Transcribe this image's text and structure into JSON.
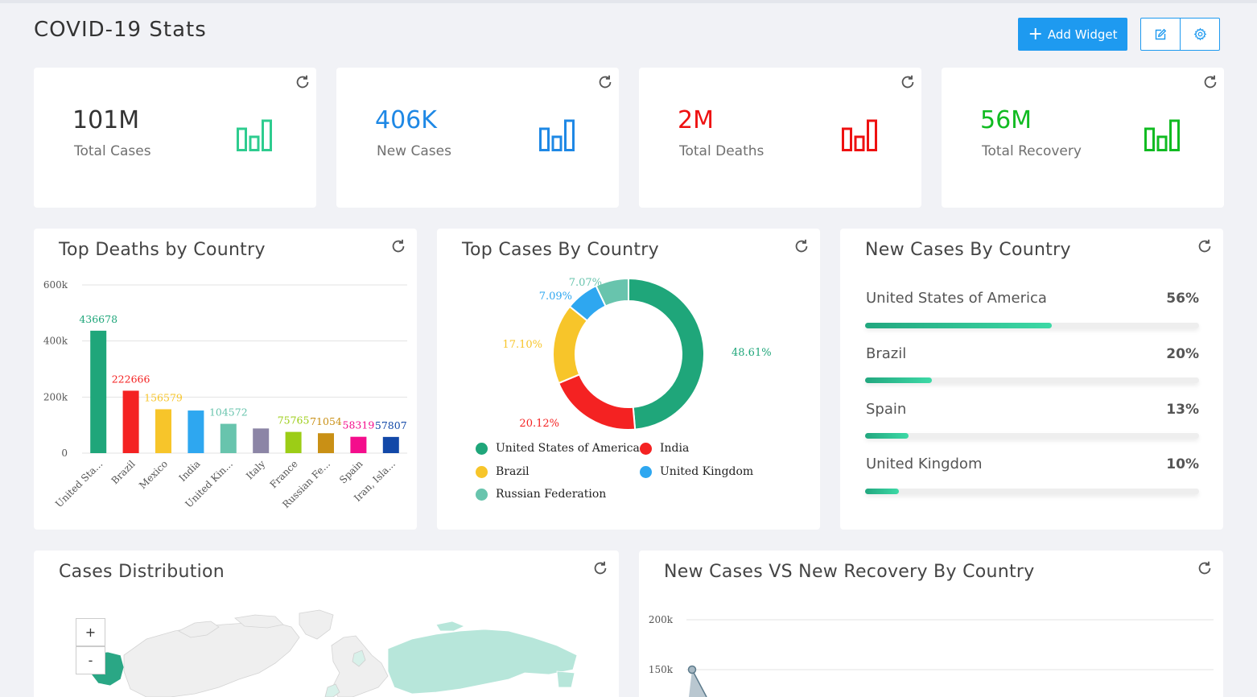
{
  "header": {
    "title": "COVID-19 Stats",
    "add_widget_label": "Add Widget",
    "edit_icon": "edit-icon",
    "settings_icon": "gear-icon",
    "accent": "#1e9af0"
  },
  "stats": [
    {
      "value": "101M",
      "label": "Total Cases",
      "color": "#333333",
      "icon_color": "#2ecc8f"
    },
    {
      "value": "406K",
      "label": "New Cases",
      "color": "#1e88e5",
      "icon_color": "#1e88e5"
    },
    {
      "value": "2M",
      "label": "Total Deaths",
      "color": "#ee1111",
      "icon_color": "#ee1111"
    },
    {
      "value": "56M",
      "label": "Total Recovery",
      "color": "#11bb22",
      "icon_color": "#11bb22"
    }
  ],
  "top_deaths": {
    "title": "Top Deaths by Country"
  },
  "top_cases": {
    "title": "Top Cases By Country"
  },
  "new_cases": {
    "title": "New Cases By Country",
    "rows": [
      {
        "country": "United States of America",
        "pct_label": "56%",
        "pct": 56
      },
      {
        "country": "Brazil",
        "pct_label": "20%",
        "pct": 20
      },
      {
        "country": "Spain",
        "pct_label": "13%",
        "pct": 13
      },
      {
        "country": "United Kingdom",
        "pct_label": "10%",
        "pct": 10
      }
    ]
  },
  "distribution": {
    "title": "Cases Distribution",
    "zoom_in": "+",
    "zoom_out": "-"
  },
  "new_vs_recovery": {
    "title": "New Cases VS New Recovery By Country"
  },
  "chart_data": [
    {
      "type": "bar",
      "categories": [
        "United Sta...",
        "Brazil",
        "Mexico",
        "India",
        "United Kin...",
        "Italy",
        "France",
        "Russian Fe...",
        "Spain",
        "Iran, Isla..."
      ],
      "values": [
        436678,
        222666,
        156579,
        152000,
        104572,
        88000,
        75765,
        71054,
        58319,
        57807
      ],
      "value_labels": [
        "436678",
        "222666",
        "156579",
        "",
        "104572",
        "",
        "75765",
        "71054",
        "58319",
        "57807"
      ],
      "colors": [
        "#1fa67a",
        "#f42222",
        "#f7c52a",
        "#2ea7f0",
        "#68c4ad",
        "#8c85a6",
        "#9ccd16",
        "#c99015",
        "#f40d8c",
        "#1248a8"
      ],
      "y_ticks": [
        "0",
        "200k",
        "400k",
        "600k"
      ],
      "ylim": [
        0,
        600000
      ],
      "grid": true
    },
    {
      "type": "pie",
      "labels": [
        "United States of America",
        "India",
        "Brazil",
        "United Kingdom",
        "Russian Federation"
      ],
      "values": [
        48.61,
        20.12,
        17.1,
        7.09,
        7.07
      ],
      "value_labels": [
        "48.61%",
        "20.12%",
        "17.10%",
        "7.09%",
        "7.07%"
      ],
      "colors": [
        "#1fa67a",
        "#f42222",
        "#f7c52a",
        "#2ea7f0",
        "#68c4ad"
      ],
      "legend": "bottom"
    },
    {
      "type": "line",
      "y_ticks": [
        "150k",
        "200k"
      ],
      "visible_points": [
        {
          "series": 0,
          "y": 150000
        }
      ],
      "grid": true
    }
  ]
}
